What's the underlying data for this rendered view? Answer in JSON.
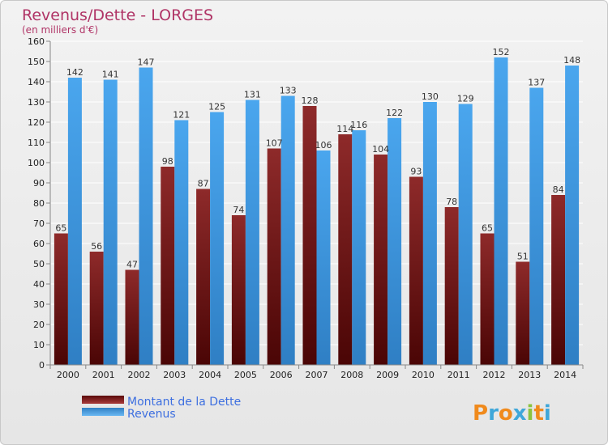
{
  "chart_data": {
    "type": "bar",
    "title": "Revenus/Dette - LORGES",
    "subtitle": "(en milliers d'€)",
    "categories": [
      "2000",
      "2001",
      "2002",
      "2003",
      "2004",
      "2005",
      "2006",
      "2007",
      "2008",
      "2009",
      "2010",
      "2011",
      "2012",
      "2013",
      "2014"
    ],
    "series": [
      {
        "name": "Montant de la Dette",
        "color": "#7a1616",
        "values": [
          65,
          56,
          47,
          98,
          87,
          74,
          107,
          128,
          114,
          104,
          93,
          78,
          65,
          51,
          84
        ]
      },
      {
        "name": "Revenus",
        "color": "#3d98e6",
        "values": [
          142,
          141,
          147,
          121,
          125,
          131,
          133,
          106,
          116,
          122,
          130,
          129,
          152,
          137,
          148
        ]
      }
    ],
    "ylim": [
      0,
      160
    ],
    "ytick_step": 10,
    "grid": true,
    "legend_position": "bottom-left"
  },
  "brand": {
    "letters": [
      "P",
      "r",
      "o",
      "x",
      "i",
      "t",
      "i"
    ],
    "colors": [
      "#f08a1c",
      "#3fa7d9",
      "#f08a1c",
      "#3fa7d9",
      "#8bc43f",
      "#f08a1c",
      "#3fa7d9"
    ]
  }
}
